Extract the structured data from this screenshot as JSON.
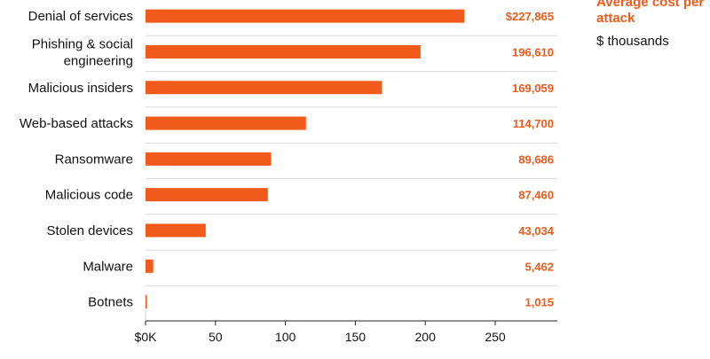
{
  "chart_data": {
    "type": "bar",
    "orientation": "horizontal",
    "categories": [
      "Denial of services",
      "Phishing & social engineering",
      "Malicious insiders",
      "Web-based attacks",
      "Ransomware",
      "Malicious code",
      "Stolen devices",
      "Malware",
      "Botnets"
    ],
    "values": [
      227.865,
      196.61,
      169.059,
      114.7,
      89.686,
      87.46,
      43.034,
      5.462,
      1.015
    ],
    "value_labels": [
      "$227,865",
      "196,610",
      "169,059",
      "114,700",
      "89,686",
      "87,460",
      "43,034",
      "5,462",
      "1,015"
    ],
    "legend": {
      "title": "Average cost per attack",
      "subtitle": "$ thousands"
    },
    "x_ticks": [
      0,
      50,
      100,
      150,
      200,
      250
    ],
    "x_tick_labels": [
      "$0K",
      "50",
      "100",
      "150",
      "200",
      "250"
    ],
    "xlim": [
      0,
      295
    ],
    "grid": "horizontal-row-separators",
    "bar_color": "#f05a1a",
    "label_color": "#f05a1a"
  }
}
